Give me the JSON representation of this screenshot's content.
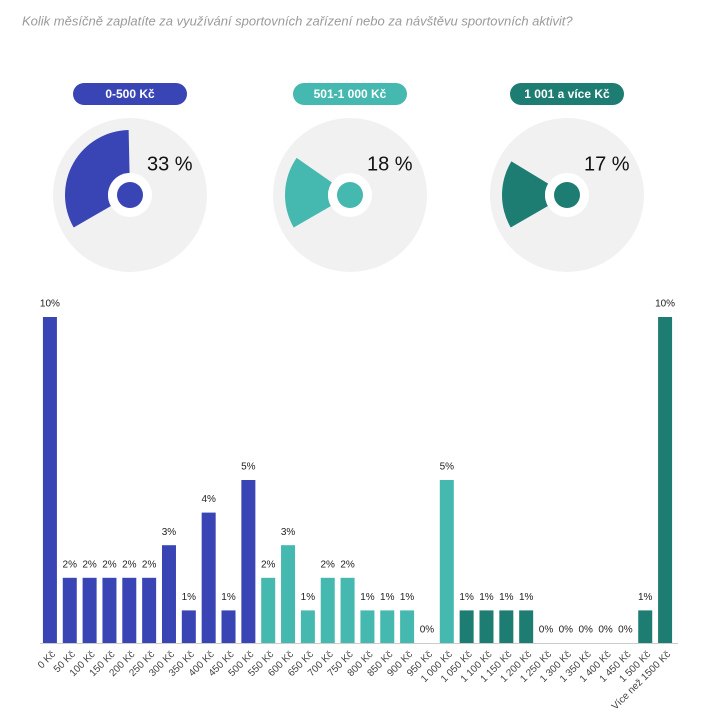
{
  "title": "Kolik měsíčně zaplatíte za využívání sportovních zařízení nebo za návštěvu sportovních aktivit?",
  "gauges": [
    {
      "label": "0-500 Kč",
      "value": 33,
      "value_label": "33 %",
      "color": "#3a45b5"
    },
    {
      "label": "501-1 000 Kč",
      "value": 18,
      "value_label": "18 %",
      "color": "#45b8b0"
    },
    {
      "label": "1 001 a více Kč",
      "value": 17,
      "value_label": "17 %",
      "color": "#1e7d72"
    }
  ],
  "chart_data": {
    "type": "bar",
    "categories": [
      "0 Kč",
      "50 Kč",
      "100 Kč",
      "150 Kč",
      "200 Kč",
      "250 Kč",
      "300 Kč",
      "350 Kč",
      "400 Kč",
      "450 Kč",
      "500 Kč",
      "550 Kč",
      "600 Kč",
      "650 Kč",
      "700 Kč",
      "750 Kč",
      "800 Kč",
      "850 Kč",
      "900 Kč",
      "950 Kč",
      "1 000 Kč",
      "1 050 Kč",
      "1 100 Kč",
      "1 150 Kč",
      "1 200 Kč",
      "1 250 Kč",
      "1 300 Kč",
      "1 350 Kč",
      "1 400 Kč",
      "1 450 Kč",
      "1 500 Kč",
      "Více než 1500 Kč"
    ],
    "values": [
      10,
      2,
      2,
      2,
      2,
      2,
      3,
      1,
      4,
      1,
      5,
      2,
      3,
      1,
      2,
      2,
      1,
      1,
      1,
      0,
      5,
      1,
      1,
      1,
      1,
      0,
      0,
      0,
      0,
      0,
      1,
      10
    ],
    "value_labels": [
      "10%",
      "2%",
      "2%",
      "2%",
      "2%",
      "2%",
      "3%",
      "1%",
      "4%",
      "1%",
      "5%",
      "2%",
      "3%",
      "1%",
      "2%",
      "2%",
      "1%",
      "1%",
      "1%",
      "0%",
      "5%",
      "1%",
      "1%",
      "1%",
      "1%",
      "0%",
      "0%",
      "0%",
      "0%",
      "0%",
      "1%",
      "10%"
    ],
    "colors": [
      "#3a45b5",
      "#3a45b5",
      "#3a45b5",
      "#3a45b5",
      "#3a45b5",
      "#3a45b5",
      "#3a45b5",
      "#3a45b5",
      "#3a45b5",
      "#3a45b5",
      "#3a45b5",
      "#45b8b0",
      "#45b8b0",
      "#45b8b0",
      "#45b8b0",
      "#45b8b0",
      "#45b8b0",
      "#45b8b0",
      "#45b8b0",
      "#45b8b0",
      "#45b8b0",
      "#1e7d72",
      "#1e7d72",
      "#1e7d72",
      "#1e7d72",
      "#1e7d72",
      "#1e7d72",
      "#1e7d72",
      "#1e7d72",
      "#1e7d72",
      "#1e7d72",
      "#1e7d72"
    ]
  }
}
